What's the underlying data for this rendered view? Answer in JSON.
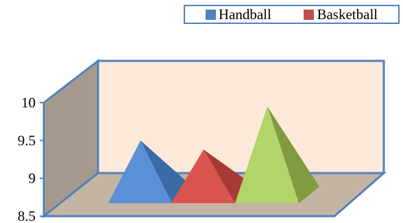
{
  "chart_data": {
    "type": "bar",
    "shape": "pyramid-3d",
    "categories": [
      "",
      "",
      ""
    ],
    "series": [
      {
        "name": "Handball",
        "values": [
          9.4,
          null,
          null
        ],
        "color": "#4f81bd"
      },
      {
        "name": "Basketball",
        "values": [
          null,
          9.28,
          null
        ],
        "color": "#c0504d"
      },
      {
        "values": [
          null,
          null,
          9.85
        ],
        "color": "#9bbb59"
      }
    ],
    "pyramid_colors": {
      "Handball": {
        "front": "#5b8fd6",
        "side": "#3c6aa6"
      },
      "Basketball": {
        "front": "#d9534f",
        "side": "#a83a36"
      },
      "third": {
        "front": "#b2d56a",
        "side": "#7f9a3f"
      }
    },
    "ylim": [
      8.5,
      10
    ],
    "yticks": [
      "8.5",
      "9",
      "9.5",
      "10"
    ],
    "grid": false,
    "legend_position": "top-right",
    "wall_colors": {
      "back": "#fde9d9",
      "side": "#a69a8f",
      "floor": "#c4b4a4",
      "edge": "#4f81bd"
    }
  }
}
